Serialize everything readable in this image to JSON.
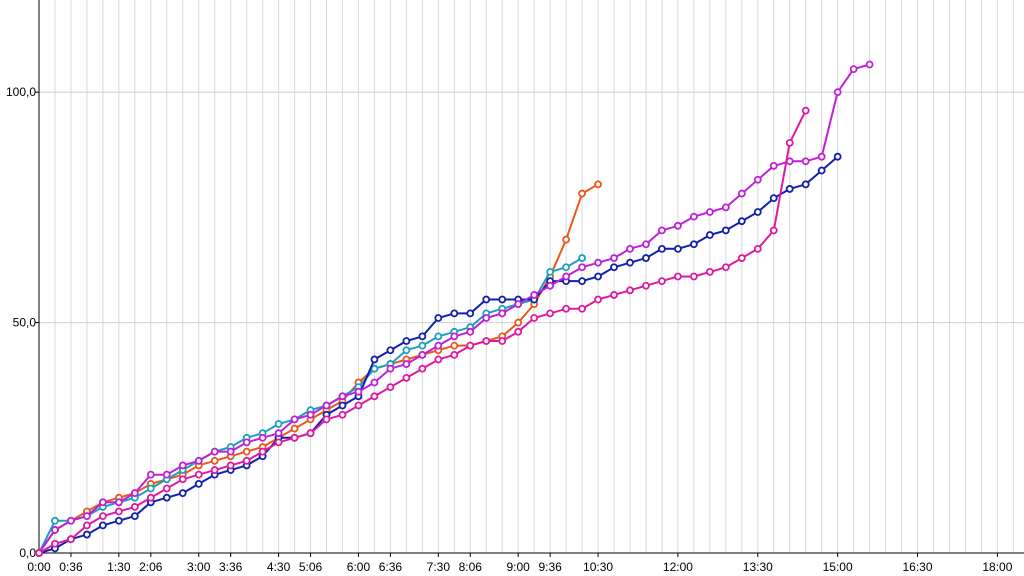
{
  "chart_data": {
    "type": "line",
    "title": "",
    "xlabel": "",
    "ylabel": "",
    "x_unit": "minutes",
    "xlim": [
      0,
      1110
    ],
    "ylim": [
      0,
      120
    ],
    "grid": true,
    "legend": "none",
    "x_tick_labels": [
      {
        "t": 0,
        "label": "0:00"
      },
      {
        "t": 36,
        "label": "0:36"
      },
      {
        "t": 90,
        "label": "1:30"
      },
      {
        "t": 126,
        "label": "2:06"
      },
      {
        "t": 180,
        "label": "3:00"
      },
      {
        "t": 216,
        "label": "3:36"
      },
      {
        "t": 270,
        "label": "4:30"
      },
      {
        "t": 306,
        "label": "5:06"
      },
      {
        "t": 360,
        "label": "6:00"
      },
      {
        "t": 396,
        "label": "6:36"
      },
      {
        "t": 450,
        "label": "7:30"
      },
      {
        "t": 486,
        "label": "8:06"
      },
      {
        "t": 540,
        "label": "9:00"
      },
      {
        "t": 576,
        "label": "9:36"
      },
      {
        "t": 630,
        "label": "10:30"
      },
      {
        "t": 720,
        "label": "12:00"
      },
      {
        "t": 810,
        "label": "13:30"
      },
      {
        "t": 900,
        "label": "15:00"
      },
      {
        "t": 990,
        "label": "16:30"
      },
      {
        "t": 1080,
        "label": "18:00"
      }
    ],
    "y_tick_labels": [
      {
        "v": 0,
        "label": "0,0"
      },
      {
        "v": 50,
        "label": "50,0"
      },
      {
        "v": 100,
        "label": "100,0"
      }
    ],
    "series": [
      {
        "color": "#e8581c",
        "x": [
          0,
          18,
          36,
          54,
          72,
          90,
          108,
          126,
          144,
          162,
          180,
          198,
          216,
          234,
          252,
          270,
          288,
          306,
          324,
          342,
          360,
          378,
          396,
          414,
          432,
          450,
          468,
          486,
          504,
          522,
          540,
          558,
          576,
          594,
          612,
          630
        ],
        "y": [
          0,
          5,
          7,
          9,
          11,
          12,
          13,
          15,
          16,
          17,
          19,
          20,
          21,
          22,
          23,
          25,
          27,
          29,
          31,
          33,
          37,
          40,
          41,
          42,
          43,
          44,
          45,
          45,
          46,
          47,
          50,
          54,
          60,
          68,
          78,
          80
        ]
      },
      {
        "color": "#1ca0c0",
        "x": [
          0,
          18,
          36,
          54,
          72,
          90,
          108,
          126,
          144,
          162,
          180,
          198,
          216,
          234,
          252,
          270,
          288,
          306,
          324,
          342,
          360,
          378,
          396,
          414,
          432,
          450,
          468,
          486,
          504,
          522,
          540,
          558,
          576,
          594,
          612
        ],
        "y": [
          0,
          7,
          7,
          8,
          10,
          11,
          12,
          14,
          16,
          18,
          20,
          22,
          23,
          25,
          26,
          28,
          29,
          31,
          32,
          34,
          36,
          40,
          41,
          44,
          45,
          47,
          48,
          49,
          52,
          53,
          54,
          55,
          61,
          62,
          64
        ]
      },
      {
        "color": "#1020b0",
        "x": [
          0,
          18,
          36,
          54,
          72,
          90,
          108,
          126,
          144,
          162,
          180,
          198,
          216,
          234,
          252,
          270,
          288,
          306,
          324,
          342,
          360,
          378,
          396,
          414,
          432,
          450,
          468,
          486,
          504,
          522,
          540,
          558,
          576,
          594,
          612,
          630,
          648,
          666,
          684,
          702,
          720,
          738,
          756,
          774,
          792,
          810,
          828,
          846,
          864,
          882,
          900
        ],
        "y": [
          0,
          1,
          3,
          4,
          6,
          7,
          8,
          11,
          12,
          13,
          15,
          17,
          18,
          19,
          21,
          25,
          25,
          26,
          30,
          32,
          34,
          42,
          44,
          46,
          47,
          51,
          52,
          52,
          55,
          55,
          55,
          55,
          59,
          59,
          59,
          60,
          62,
          63,
          64,
          66,
          66,
          67,
          69,
          70,
          72,
          74,
          77,
          79,
          80,
          83,
          86
        ]
      },
      {
        "color": "#c020d8",
        "x": [
          0,
          18,
          36,
          54,
          72,
          90,
          108,
          126,
          144,
          162,
          180,
          198,
          216,
          234,
          252,
          270,
          288,
          306,
          324,
          342,
          360,
          378,
          396,
          414,
          432,
          450,
          468,
          486,
          504,
          522,
          540,
          558,
          576,
          594,
          612,
          630,
          648,
          666,
          684,
          702,
          720,
          738,
          756,
          774,
          792,
          810,
          828,
          846,
          864,
          882,
          900,
          918,
          936
        ],
        "y": [
          0,
          5,
          7,
          8,
          11,
          11,
          13,
          17,
          17,
          19,
          20,
          22,
          22,
          24,
          25,
          26,
          29,
          30,
          32,
          34,
          35,
          37,
          40,
          41,
          43,
          45,
          47,
          48,
          51,
          52,
          54,
          56,
          58,
          60,
          62,
          63,
          64,
          66,
          67,
          70,
          71,
          73,
          74,
          75,
          78,
          81,
          84,
          85,
          85,
          86,
          100,
          105,
          106
        ]
      },
      {
        "color": "#e01aa0",
        "x": [
          0,
          18,
          36,
          54,
          72,
          90,
          108,
          126,
          144,
          162,
          180,
          198,
          216,
          234,
          252,
          270,
          288,
          306,
          324,
          342,
          360,
          378,
          396,
          414,
          432,
          450,
          468,
          486,
          504,
          522,
          540,
          558,
          576,
          594,
          612,
          630,
          648,
          666,
          684,
          702,
          720,
          738,
          756,
          774,
          792,
          810,
          828,
          846,
          864
        ],
        "y": [
          0,
          2,
          3,
          6,
          8,
          9,
          10,
          12,
          14,
          16,
          17,
          18,
          19,
          20,
          22,
          24,
          25,
          26,
          29,
          30,
          32,
          34,
          36,
          38,
          40,
          42,
          43,
          45,
          46,
          46,
          48,
          51,
          52,
          53,
          53,
          55,
          56,
          57,
          58,
          59,
          60,
          60,
          61,
          62,
          64,
          66,
          70,
          89,
          96
        ]
      }
    ]
  }
}
